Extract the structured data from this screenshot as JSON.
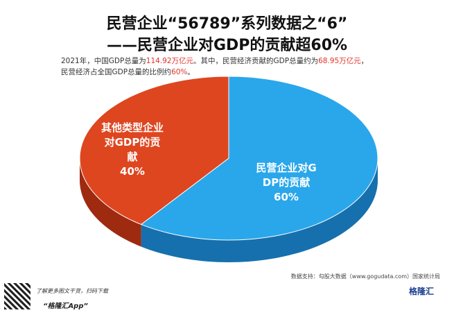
{
  "chart_data": {
    "type": "pie3d",
    "title": "民营企业“56789”系列数据之“6”",
    "title_line2": "——民营企业对GDP的贡献超60%",
    "subtitle_lines": [
      [
        {
          "text": "2021年，中国GDP总量为"
        },
        {
          "text": "114.92万亿元",
          "highlight": true
        },
        {
          "text": "。其中，民营经济贡献的GDP总量约为"
        },
        {
          "text": "68.95万亿元",
          "highlight": true
        },
        {
          "text": "，"
        }
      ],
      [
        {
          "text": "民营经济占全国GDP总量的比例约"
        },
        {
          "text": "60%",
          "highlight": true
        },
        {
          "text": "。"
        }
      ]
    ],
    "highlight_color": "#e0322a",
    "categories": [
      "民营企业对GDP的贡献",
      "其他类型企业对GDP的贡献"
    ],
    "values": [
      60,
      40
    ],
    "value_labels": [
      "60%",
      "40%"
    ],
    "colors": [
      "#2aa7ea",
      "#de4620"
    ],
    "side_colors": [
      "#1670ad",
      "#9e2a10"
    ],
    "source": "数据支持：勾股大数据（www.gogudata.com）国家统计局",
    "footer_note": "了解更多图文干货，扫码下载",
    "footer_app": "“格隆汇App”",
    "logo": "格隆汇"
  }
}
